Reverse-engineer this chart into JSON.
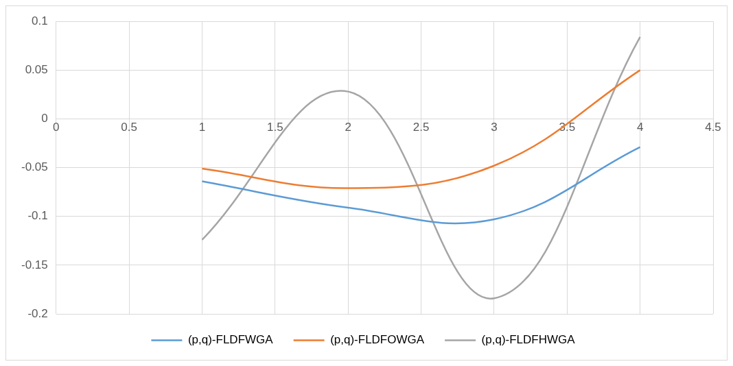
{
  "chart_data": {
    "type": "line",
    "x": [
      1,
      2,
      3,
      4
    ],
    "xlim": [
      0,
      4.5
    ],
    "xticks": [
      0,
      0.5,
      1,
      1.5,
      2,
      2.5,
      3,
      3.5,
      4,
      4.5
    ],
    "ylim": [
      -0.2,
      0.1
    ],
    "yticks": [
      -0.2,
      -0.15,
      -0.1,
      -0.05,
      0,
      0.05,
      0.1
    ],
    "grid": true,
    "legend": "bottom",
    "marker": "none",
    "line_style": "solid",
    "series": [
      {
        "name": "(p,q)-FLDFWGA",
        "color": "#5b9bd5",
        "values": [
          -0.064,
          -0.091,
          -0.103,
          -0.029
        ]
      },
      {
        "name": "(p,q)-FLDFOWGA",
        "color": "#ed7d31",
        "values": [
          -0.051,
          -0.071,
          -0.048,
          0.05
        ]
      },
      {
        "name": "(p,q)-FLDFHWGA",
        "color": "#a5a5a5",
        "values": [
          -0.124,
          0.028,
          -0.184,
          0.084
        ]
      }
    ]
  }
}
